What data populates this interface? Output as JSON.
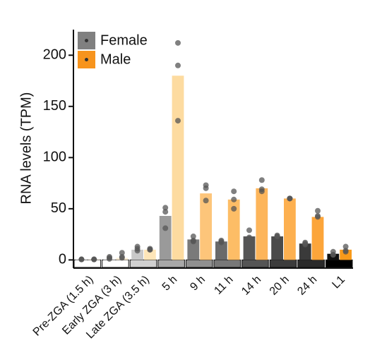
{
  "chart_data": {
    "type": "bar",
    "ylabel": "RNA levels (TPM)",
    "categories": [
      "Pre-ZGA (1.5 h)",
      "Early ZGA (3 h)",
      "Late ZGA (3.5 h)",
      "5 h",
      "9 h",
      "11 h",
      "14 h",
      "20 h",
      "24 h",
      "L1"
    ],
    "stage_colors": [
      "#ffffff",
      "#ffffff",
      "#d0d0d0",
      "#a8a8a8",
      "#909090",
      "#787878",
      "#555555",
      "#3c3c3c",
      "#2a2a2a",
      "#000000"
    ],
    "series": [
      {
        "name": "Female",
        "color": "#808080",
        "values": [
          0.5,
          1,
          10,
          43,
          20,
          18,
          23,
          23,
          16,
          6
        ],
        "colors": [
          "#e0e0e0",
          "#f0f0f0",
          "#c8c8c8",
          "#9a9a9a",
          "#7a7a7a",
          "#6a6a6a",
          "#555555",
          "#4a4a4a",
          "#3a3a3a",
          "#111111"
        ],
        "points": [
          [
            0.5,
            0.5,
            0.5
          ],
          [
            2,
            3,
            1
          ],
          [
            13,
            11,
            9
          ],
          [
            51,
            47,
            31
          ],
          [
            23,
            18,
            19
          ],
          [
            17,
            18,
            19
          ],
          [
            29,
            22,
            21
          ],
          [
            24,
            23,
            23
          ],
          [
            17,
            15,
            16
          ],
          [
            8,
            5,
            5
          ]
        ]
      },
      {
        "name": "Male",
        "color": "#f7941d",
        "values": [
          0.5,
          2,
          10,
          180,
          65,
          59,
          70,
          60,
          42,
          10
        ],
        "colors": [
          "#fff4e0",
          "#ffefd6",
          "#fde5b8",
          "#fddba0",
          "#fdc57a",
          "#fdbd66",
          "#fdb55a",
          "#fdb050",
          "#fca53a",
          "#f99a1a"
        ],
        "points": [
          [
            0.5,
            0.5,
            0.5
          ],
          [
            7,
            3,
            2
          ],
          [
            11,
            10,
            10
          ],
          [
            212,
            190,
            136
          ],
          [
            73,
            70,
            58
          ],
          [
            67,
            59,
            50
          ],
          [
            78,
            69,
            67
          ],
          [
            60,
            60,
            60
          ],
          [
            48,
            43,
            42
          ],
          [
            13,
            9,
            8
          ]
        ]
      }
    ],
    "ylim": [
      -8,
      225
    ],
    "yticks": [
      0,
      50,
      100,
      150,
      200
    ]
  }
}
